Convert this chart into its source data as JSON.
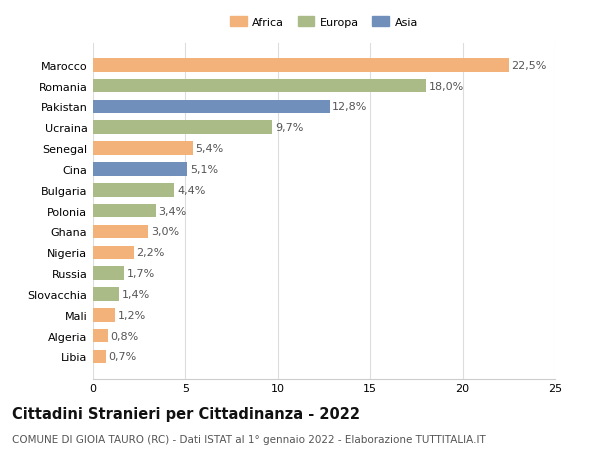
{
  "categories": [
    "Marocco",
    "Romania",
    "Pakistan",
    "Ucraina",
    "Senegal",
    "Cina",
    "Bulgaria",
    "Polonia",
    "Ghana",
    "Nigeria",
    "Russia",
    "Slovacchia",
    "Mali",
    "Algeria",
    "Libia"
  ],
  "values": [
    22.5,
    18.0,
    12.8,
    9.7,
    5.4,
    5.1,
    4.4,
    3.4,
    3.0,
    2.2,
    1.7,
    1.4,
    1.2,
    0.8,
    0.7
  ],
  "labels": [
    "22,5%",
    "18,0%",
    "12,8%",
    "9,7%",
    "5,4%",
    "5,1%",
    "4,4%",
    "3,4%",
    "3,0%",
    "2,2%",
    "1,7%",
    "1,4%",
    "1,2%",
    "0,8%",
    "0,7%"
  ],
  "colors": [
    "#F2B27A",
    "#AABB88",
    "#7090BB",
    "#AABB88",
    "#F2B27A",
    "#7090BB",
    "#AABB88",
    "#AABB88",
    "#F2B27A",
    "#F2B27A",
    "#AABB88",
    "#AABB88",
    "#F2B27A",
    "#F2B27A",
    "#F2B27A"
  ],
  "legend_labels": [
    "Africa",
    "Europa",
    "Asia"
  ],
  "legend_colors": [
    "#F2B27A",
    "#AABB88",
    "#7090BB"
  ],
  "title": "Cittadini Stranieri per Cittadinanza - 2022",
  "subtitle": "COMUNE DI GIOIA TAURO (RC) - Dati ISTAT al 1° gennaio 2022 - Elaborazione TUTTITALIA.IT",
  "xlim": [
    0,
    25
  ],
  "xticks": [
    0,
    5,
    10,
    15,
    20,
    25
  ],
  "background_color": "#ffffff",
  "grid_color": "#dddddd",
  "bar_height": 0.65,
  "label_fontsize": 8,
  "tick_fontsize": 8,
  "title_fontsize": 10.5,
  "subtitle_fontsize": 7.5
}
